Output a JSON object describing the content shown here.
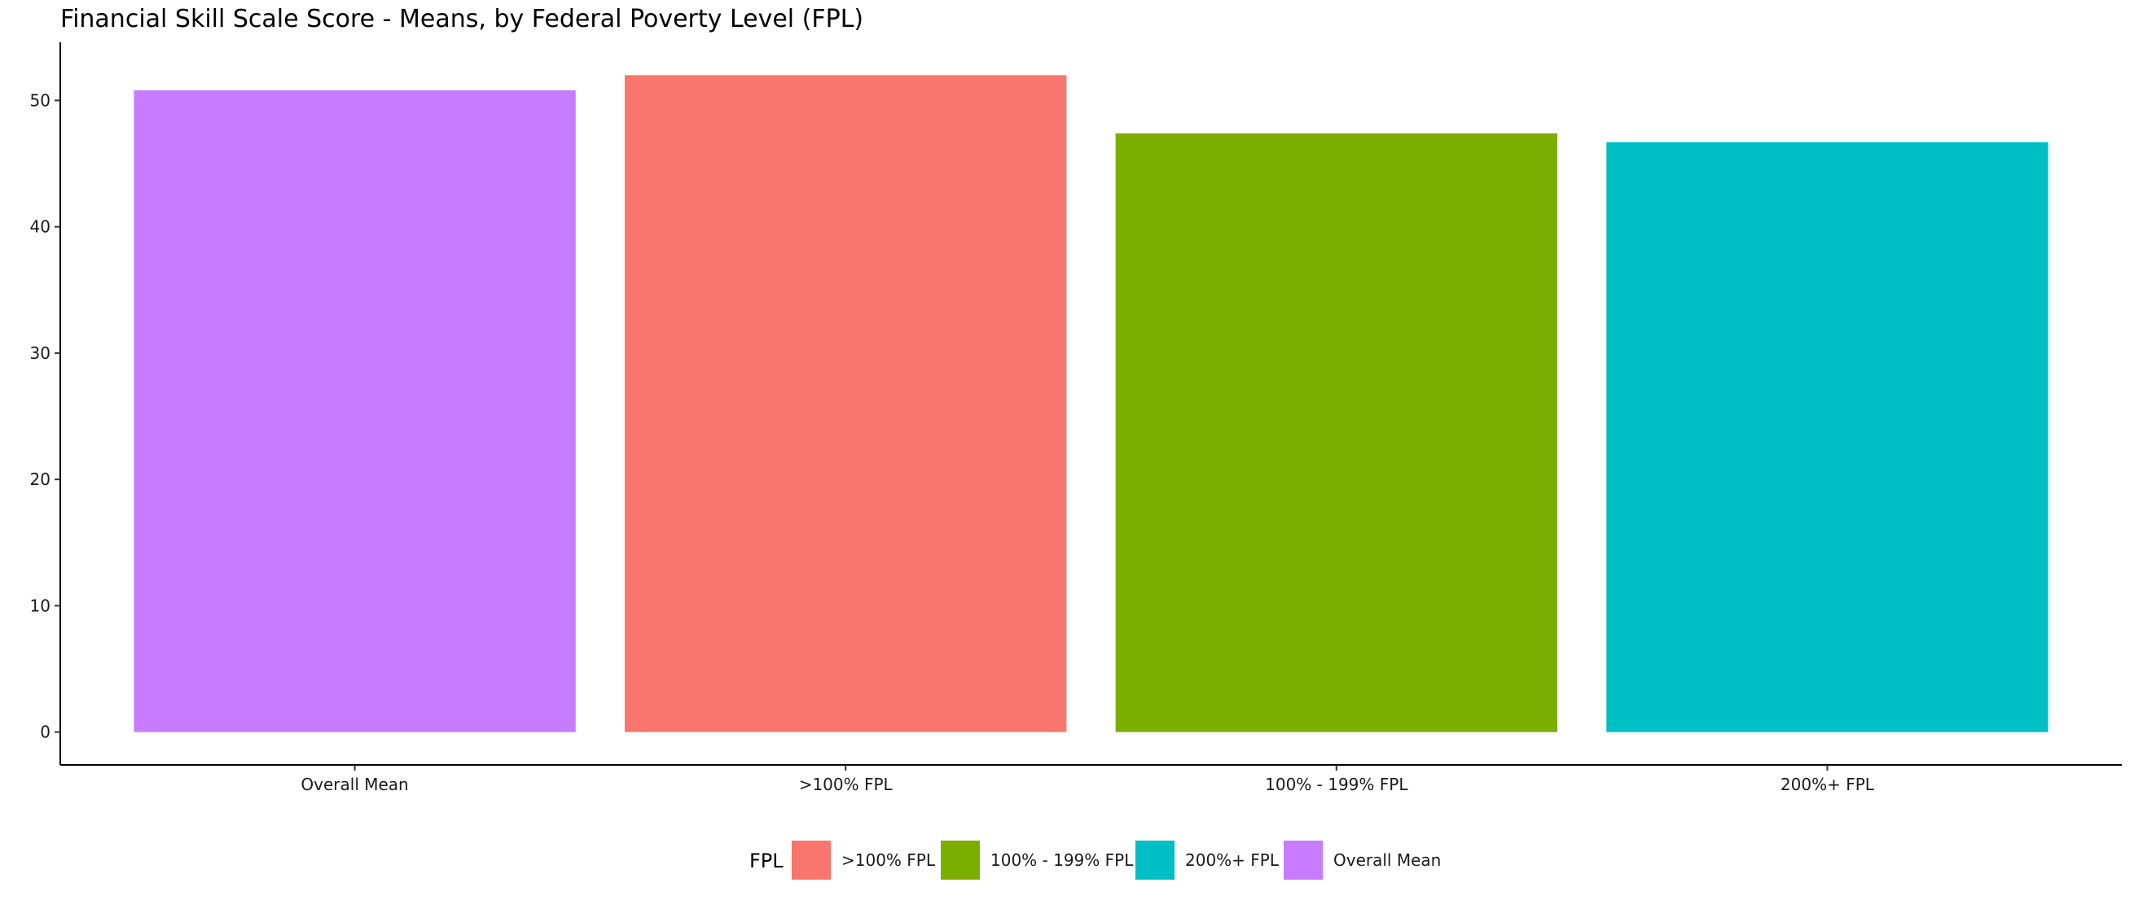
{
  "chart_data": {
    "type": "bar",
    "title": "Financial Skill Scale Score - Means, by Federal Poverty Level (FPL)",
    "xlabel": "",
    "ylabel": "",
    "categories": [
      "Overall Mean",
      ">100% FPL",
      "100% - 199% FPL",
      "200%+ FPL"
    ],
    "values": [
      50.8,
      52.0,
      47.4,
      46.7
    ],
    "colors": [
      "#C77CFF",
      "#F8766D",
      "#7CAE00",
      "#00BFC4"
    ],
    "ylim": [
      -2.6,
      54.6
    ],
    "yticks": [
      0,
      10,
      20,
      30,
      40,
      50
    ],
    "grid": false,
    "legend": {
      "title": "FPL",
      "position": "bottom",
      "items": [
        {
          "label": ">100% FPL",
          "color": "#F8766D"
        },
        {
          "label": "100% - 199% FPL",
          "color": "#7CAE00"
        },
        {
          "label": "200%+ FPL",
          "color": "#00BFC4"
        },
        {
          "label": "Overall Mean",
          "color": "#C77CFF"
        }
      ]
    }
  }
}
